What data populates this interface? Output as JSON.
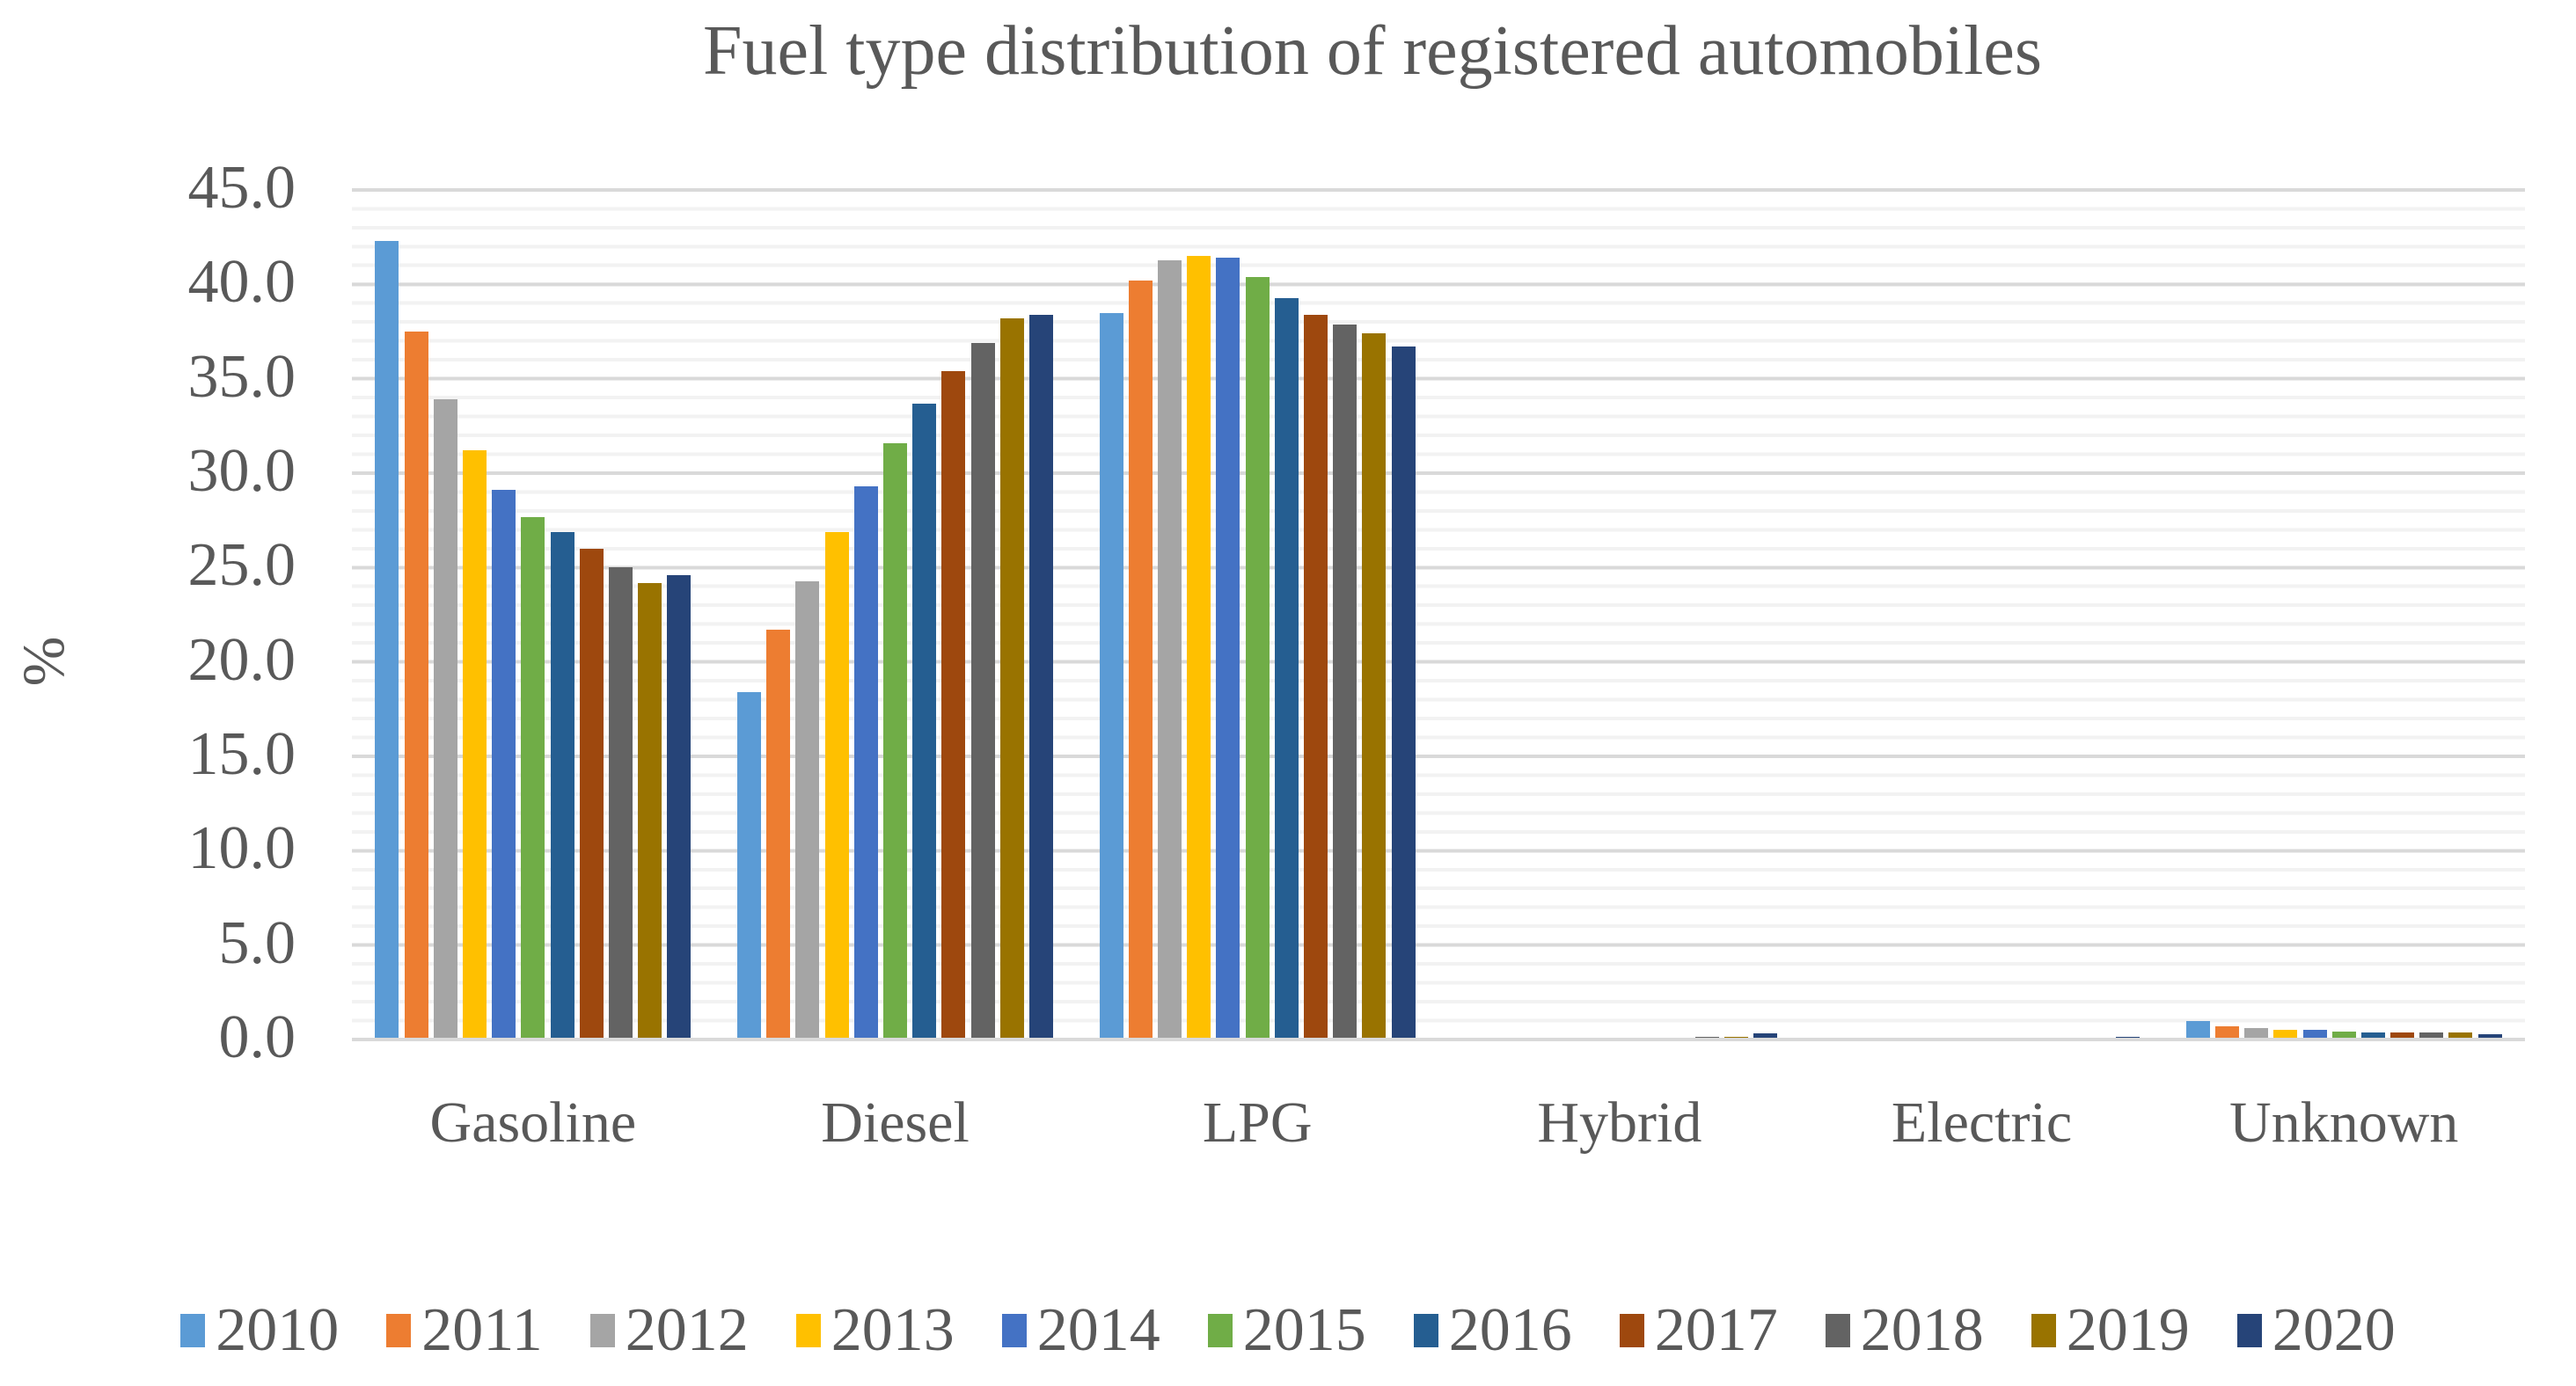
{
  "title": "Fuel type distribution of registered automobiles",
  "colors": {
    "text": "#595959",
    "background": "#FFFFFF",
    "grid_major": "#D9D9D9",
    "grid_minor": "#F2F2F2"
  },
  "chart_data": {
    "type": "bar",
    "title": "Fuel type distribution of registered automobiles",
    "xlabel": "",
    "ylabel": "%",
    "ylim": [
      0,
      45
    ],
    "ytick_step": 5,
    "ytick_labels": [
      "0.0",
      "5.0",
      "10.0",
      "15.0",
      "20.0",
      "25.0",
      "30.0",
      "35.0",
      "40.0",
      "45.0"
    ],
    "minor_gridline_unit": 1.0,
    "grid": "horizontal",
    "legend_position": "bottom",
    "categories": [
      "Gasoline",
      "Diesel",
      "LPG",
      "Hybrid",
      "Electric",
      "Unknown"
    ],
    "series": [
      {
        "name": "2010",
        "color": "#5B9BD5",
        "values": [
          42.2,
          18.3,
          38.4,
          0.0,
          0.0,
          0.9
        ]
      },
      {
        "name": "2011",
        "color": "#ED7D31",
        "values": [
          37.4,
          21.6,
          40.1,
          0.0,
          0.0,
          0.6
        ]
      },
      {
        "name": "2012",
        "color": "#A5A5A5",
        "values": [
          33.8,
          24.2,
          41.2,
          0.0,
          0.0,
          0.5
        ]
      },
      {
        "name": "2013",
        "color": "#FFC000",
        "values": [
          31.1,
          26.8,
          41.4,
          0.0,
          0.0,
          0.4
        ]
      },
      {
        "name": "2014",
        "color": "#4472C4",
        "values": [
          29.0,
          29.2,
          41.3,
          0.0,
          0.0,
          0.4
        ]
      },
      {
        "name": "2015",
        "color": "#70AD47",
        "values": [
          27.6,
          31.5,
          40.3,
          0.0,
          0.0,
          0.35
        ]
      },
      {
        "name": "2016",
        "color": "#255E91",
        "values": [
          26.8,
          33.6,
          39.2,
          0.0,
          0.0,
          0.3
        ]
      },
      {
        "name": "2017",
        "color": "#9E480E",
        "values": [
          25.9,
          35.3,
          38.3,
          0.0,
          0.0,
          0.3
        ]
      },
      {
        "name": "2018",
        "color": "#636363",
        "values": [
          24.9,
          36.8,
          37.8,
          0.05,
          0.0,
          0.3
        ]
      },
      {
        "name": "2019",
        "color": "#997300",
        "values": [
          24.1,
          38.1,
          37.3,
          0.05,
          0.0,
          0.3
        ]
      },
      {
        "name": "2020",
        "color": "#264478",
        "values": [
          24.5,
          38.3,
          36.6,
          0.25,
          0.05,
          0.2
        ]
      }
    ]
  }
}
